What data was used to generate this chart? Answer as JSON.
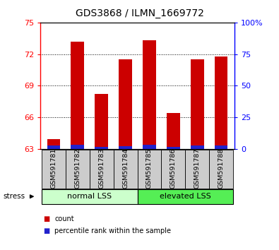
{
  "title": "GDS3868 / ILMN_1669772",
  "samples": [
    "GSM591781",
    "GSM591782",
    "GSM591783",
    "GSM591784",
    "GSM591785",
    "GSM591786",
    "GSM591787",
    "GSM591788"
  ],
  "red_values": [
    63.9,
    73.2,
    68.2,
    71.5,
    73.3,
    66.4,
    71.5,
    71.8
  ],
  "blue_values": [
    0.3,
    0.35,
    0.15,
    0.25,
    0.35,
    0.2,
    0.3,
    0.3
  ],
  "y_min": 63,
  "y_max": 75,
  "y_ticks": [
    63,
    66,
    69,
    72,
    75
  ],
  "y_right_ticks": [
    0,
    25,
    50,
    75,
    100
  ],
  "y_right_labels": [
    "0",
    "25",
    "50",
    "75",
    "100%"
  ],
  "group1_label": "normal LSS",
  "group2_label": "elevated LSS",
  "stress_label": "stress",
  "legend_red": "count",
  "legend_blue": "percentile rank within the sample",
  "bar_color_red": "#cc0000",
  "bar_color_blue": "#2222cc",
  "group1_color": "#ccffcc",
  "group2_color": "#55ee55",
  "group_bg_color": "#cccccc",
  "title_fontsize": 10,
  "tick_fontsize": 8,
  "label_fontsize": 8,
  "bar_width": 0.55
}
